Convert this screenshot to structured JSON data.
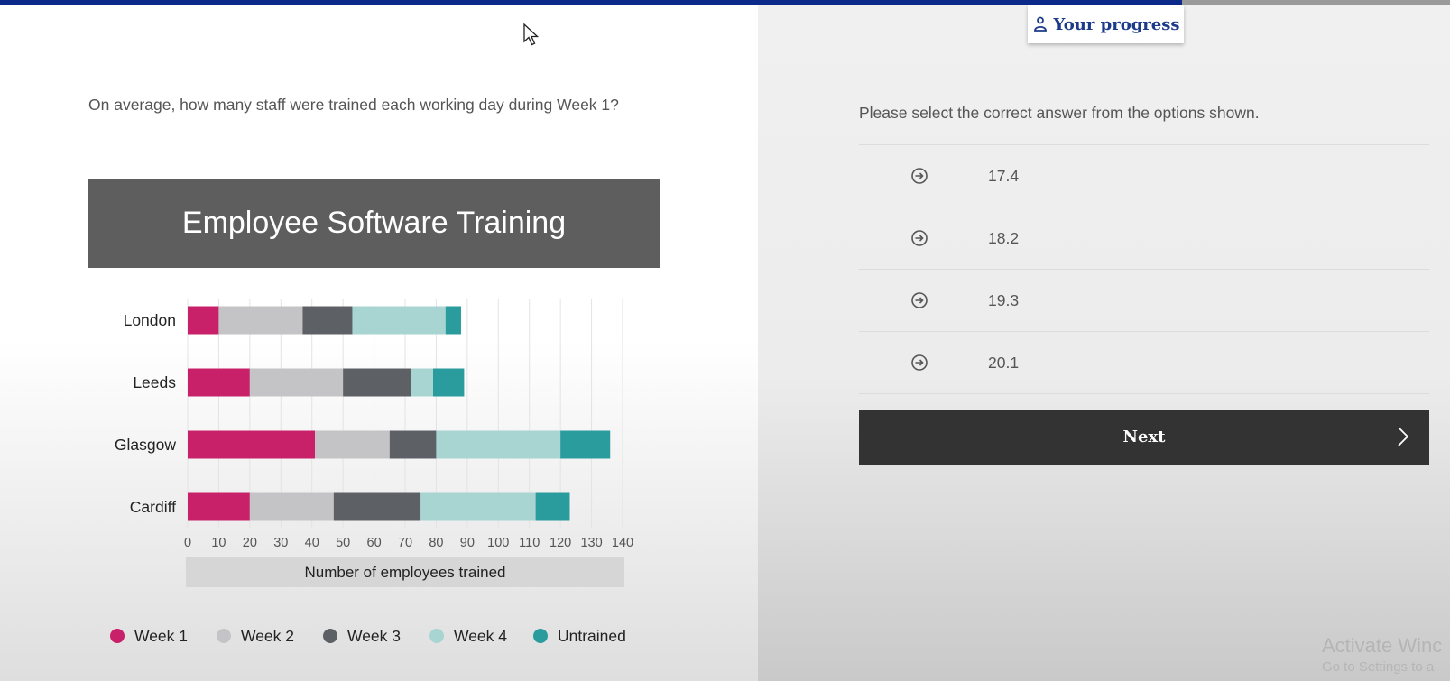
{
  "header": {
    "progress_label": "Your progress",
    "progress_icon": "person-outline-icon",
    "accent_color": "#0b2a8a"
  },
  "question": {
    "text": "On average, how many staff were trained each working day during Week 1?"
  },
  "chart_data": {
    "type": "bar",
    "orientation": "horizontal",
    "stacked": true,
    "title": "Employee Software Training",
    "xlabel": "Number of employees trained",
    "ylabel": "",
    "xlim": [
      0,
      140
    ],
    "xticks": [
      0,
      10,
      20,
      30,
      40,
      50,
      60,
      70,
      80,
      90,
      100,
      110,
      120,
      130,
      140
    ],
    "categories": [
      "London",
      "Leeds",
      "Glasgow",
      "Cardiff"
    ],
    "series": [
      {
        "name": "Week 1",
        "color": "#c8216a",
        "values": [
          10,
          20,
          41,
          20
        ]
      },
      {
        "name": "Week 2",
        "color": "#c4c4c6",
        "values": [
          27,
          30,
          24,
          27
        ]
      },
      {
        "name": "Week 3",
        "color": "#5d6166",
        "values": [
          16,
          22,
          15,
          28
        ]
      },
      {
        "name": "Week 4",
        "color": "#a8d4d2",
        "values": [
          30,
          7,
          40,
          37
        ]
      },
      {
        "name": "Untrained",
        "color": "#2b9c9e",
        "values": [
          5,
          10,
          16,
          11
        ]
      }
    ],
    "grid": true,
    "legend_position": "bottom"
  },
  "answer_panel": {
    "instruction": "Please select the correct answer from the options shown.",
    "options": [
      {
        "label": "17.4",
        "icon": "arrow-circle-icon"
      },
      {
        "label": "18.2",
        "icon": "arrow-circle-icon"
      },
      {
        "label": "19.3",
        "icon": "arrow-circle-icon"
      },
      {
        "label": "20.1",
        "icon": "arrow-circle-icon"
      }
    ],
    "next_label": "Next"
  },
  "watermark": {
    "line1": "Activate Winc",
    "line2": "Go to Settings to a"
  }
}
